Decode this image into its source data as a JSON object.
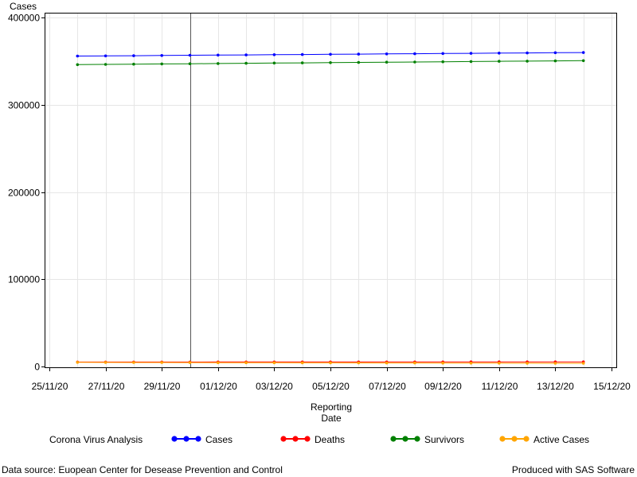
{
  "chart_data": {
    "type": "line",
    "ylabel": "Cases",
    "xlabel_lines": [
      "Reporting",
      "Date"
    ],
    "ylim": [
      0,
      400000
    ],
    "y_ticks": [
      0,
      100000,
      200000,
      300000,
      400000
    ],
    "y_tick_labels": [
      "0",
      "100000",
      "200000",
      "300000",
      "400000"
    ],
    "xlim": [
      "2020-11-25",
      "2020-12-15"
    ],
    "x_tick_labels": [
      "25/11/20",
      "27/11/20",
      "29/11/20",
      "01/12/20",
      "03/12/20",
      "05/12/20",
      "07/12/20",
      "09/12/20",
      "11/12/20",
      "13/12/20",
      "15/12/20"
    ],
    "x_ticks": [
      "2020-11-25",
      "2020-11-27",
      "2020-11-29",
      "2020-12-01",
      "2020-12-03",
      "2020-12-05",
      "2020-12-07",
      "2020-12-09",
      "2020-12-11",
      "2020-12-13",
      "2020-12-15"
    ],
    "x_minor_gridlines": [
      "2020-11-26",
      "2020-11-28",
      "2020-11-30",
      "2020-12-02",
      "2020-12-04",
      "2020-12-06",
      "2020-12-08",
      "2020-12-10",
      "2020-12-12",
      "2020-12-14"
    ],
    "reference_line": "2020-11-30",
    "grid": true,
    "x": [
      "2020-11-26",
      "2020-11-27",
      "2020-11-28",
      "2020-11-29",
      "2020-11-30",
      "2020-12-01",
      "2020-12-02",
      "2020-12-03",
      "2020-12-04",
      "2020-12-05",
      "2020-12-06",
      "2020-12-07",
      "2020-12-08",
      "2020-12-09",
      "2020-12-10",
      "2020-12-11",
      "2020-12-12",
      "2020-12-13",
      "2020-12-14"
    ],
    "series": [
      {
        "name": "Cases",
        "color": "#0000ff",
        "marker": "circle",
        "values": [
          355800,
          356000,
          356200,
          356450,
          356700,
          356900,
          357100,
          357350,
          357550,
          357800,
          358000,
          358250,
          358450,
          358700,
          358900,
          359150,
          359350,
          359600,
          359800
        ]
      },
      {
        "name": "Deaths",
        "color": "#ff0000",
        "marker": "circle",
        "values": [
          5100,
          5110,
          5120,
          5130,
          5140,
          5150,
          5160,
          5170,
          5180,
          5190,
          5200,
          5210,
          5220,
          5230,
          5240,
          5250,
          5260,
          5270,
          5280
        ]
      },
      {
        "name": "Survivors",
        "color": "#008000",
        "marker": "circle",
        "values": [
          346000,
          346250,
          346500,
          346750,
          347000,
          347250,
          347500,
          347750,
          348000,
          348250,
          348500,
          348750,
          349000,
          349250,
          349500,
          349750,
          350000,
          350250,
          350500
        ]
      },
      {
        "name": "Active Cases",
        "color": "#ffa500",
        "marker": "circle",
        "values": [
          4700,
          4640,
          4580,
          4520,
          4460,
          4400,
          4340,
          4280,
          4220,
          4160,
          4100,
          4040,
          3980,
          3920,
          3860,
          3800,
          3740,
          3680,
          3620
        ]
      }
    ],
    "legend": {
      "title": "Corona Virus Analysis",
      "placement": "bottom",
      "entries": [
        "Cases",
        "Deaths",
        "Survivors",
        "Active Cases"
      ]
    }
  },
  "footer": {
    "source": "Data source: Euopean Center for Desease Prevention and Control",
    "credit": "Produced with SAS Software"
  }
}
